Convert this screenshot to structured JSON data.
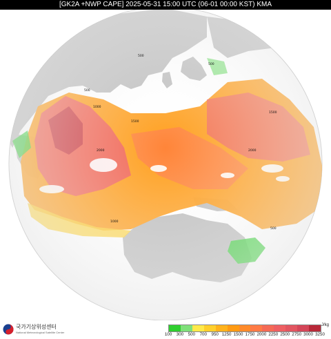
{
  "title": "[GK2A +NWP CAPE] 2025-05-31 15:00 UTC (06-01 00:00 KST) KMA",
  "logo": {
    "name_ko": "국가기상위성센터",
    "name_en": "National Meteorological Satellite Center"
  },
  "legend": {
    "unit": "J/kg",
    "labels": [
      "100",
      "300",
      "500",
      "700",
      "950",
      "1250",
      "1500",
      "1750",
      "2000",
      "2250",
      "2500",
      "2750",
      "3000",
      "3250"
    ],
    "colors": [
      "#2fcf2f",
      "#7fe07a",
      "#ffe94a",
      "#ffcf2c",
      "#ffb21c",
      "#ff9a12",
      "#ff8a2a",
      "#ff7a45",
      "#f56a55",
      "#ee5f62",
      "#e25560",
      "#d44558",
      "#b82838"
    ]
  },
  "map": {
    "projection": "full disk",
    "land_color": "#bdbdbd",
    "ocean_color": "#ffffff",
    "contour_labels": [
      "500",
      "500",
      "500",
      "1000",
      "1500",
      "2000",
      "2000",
      "1500",
      "1000",
      "500"
    ]
  }
}
